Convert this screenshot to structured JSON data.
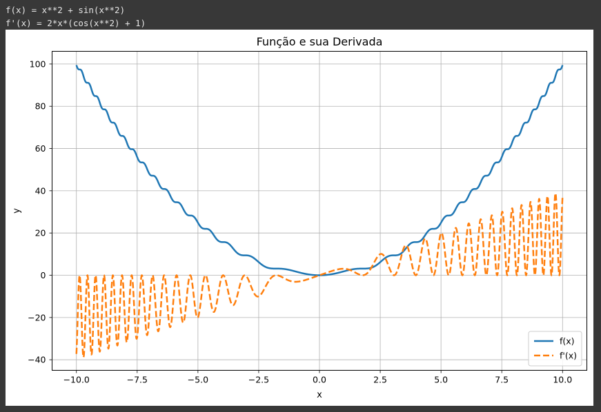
{
  "console": {
    "line1": "f(x) = x**2 + sin(x**2)",
    "line2": "f'(x) = 2*x*(cos(x**2) + 1)"
  },
  "chart_data": {
    "type": "line",
    "title": "Função e sua Derivada",
    "xlabel": "x",
    "ylabel": "y",
    "xlim": [
      -11,
      11
    ],
    "ylim": [
      -45,
      106
    ],
    "xticks": [
      -10,
      -7.5,
      -5,
      -2.5,
      0,
      2.5,
      5,
      7.5,
      10
    ],
    "xtick_labels": [
      "−10.0",
      "−7.5",
      "−5.0",
      "−2.5",
      "0.0",
      "2.5",
      "5.0",
      "7.5",
      "10.0"
    ],
    "yticks": [
      -40,
      -20,
      0,
      20,
      40,
      60,
      80,
      100
    ],
    "ytick_labels": [
      "−40",
      "−20",
      "0",
      "20",
      "40",
      "60",
      "80",
      "100"
    ],
    "grid": true,
    "legend_position": "lower-right",
    "x_domain": [
      -10,
      10
    ],
    "series": [
      {
        "name": "f(x)",
        "expression": "x**2 + sin(x**2)",
        "color": "#1f77b4",
        "style": "solid"
      },
      {
        "name": "f'(x)",
        "expression": "2*x*(cos(x**2) + 1)",
        "color": "#ff7f0e",
        "style": "dashed"
      }
    ]
  }
}
